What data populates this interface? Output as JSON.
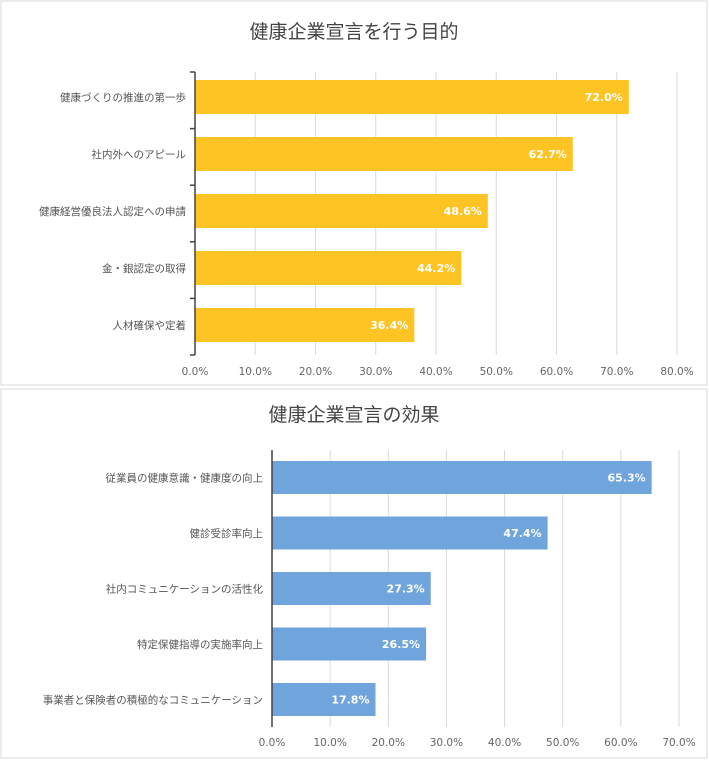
{
  "chart_data": [
    {
      "type": "bar",
      "orientation": "horizontal",
      "title": "健康企業宣言を行う目的",
      "categories": [
        "健康づくりの推進の第一歩",
        "社内外へのアピール",
        "健康経営優良法人認定への申請",
        "金・銀認定の取得",
        "人材確保や定着"
      ],
      "values": [
        72.0,
        62.7,
        48.6,
        44.2,
        36.4
      ],
      "data_labels": [
        "72.0%",
        "62.7%",
        "48.6%",
        "44.2%",
        "36.4%"
      ],
      "xlim": [
        0,
        80
      ],
      "ticks": [
        "0.0%",
        "10.0%",
        "20.0%",
        "30.0%",
        "40.0%",
        "50.0%",
        "60.0%",
        "70.0%",
        "80.0%"
      ],
      "color": "#FDC424",
      "grid": true
    },
    {
      "type": "bar",
      "orientation": "horizontal",
      "title": "健康企業宣言の効果",
      "categories": [
        "従業員の健康意識・健康度の向上",
        "健診受診率向上",
        "社内コミュニケーションの活性化",
        "特定保健指導の実施率向上",
        "事業者と保険者の積極的なコミュニケーション"
      ],
      "values": [
        65.3,
        47.4,
        27.3,
        26.5,
        17.8
      ],
      "data_labels": [
        "65.3%",
        "47.4%",
        "27.3%",
        "26.5%",
        "17.8%"
      ],
      "xlim": [
        0,
        70
      ],
      "ticks": [
        "0.0%",
        "10.0%",
        "20.0%",
        "30.0%",
        "40.0%",
        "50.0%",
        "60.0%",
        "70.0%"
      ],
      "color": "#6FA5DC",
      "grid": true
    }
  ]
}
